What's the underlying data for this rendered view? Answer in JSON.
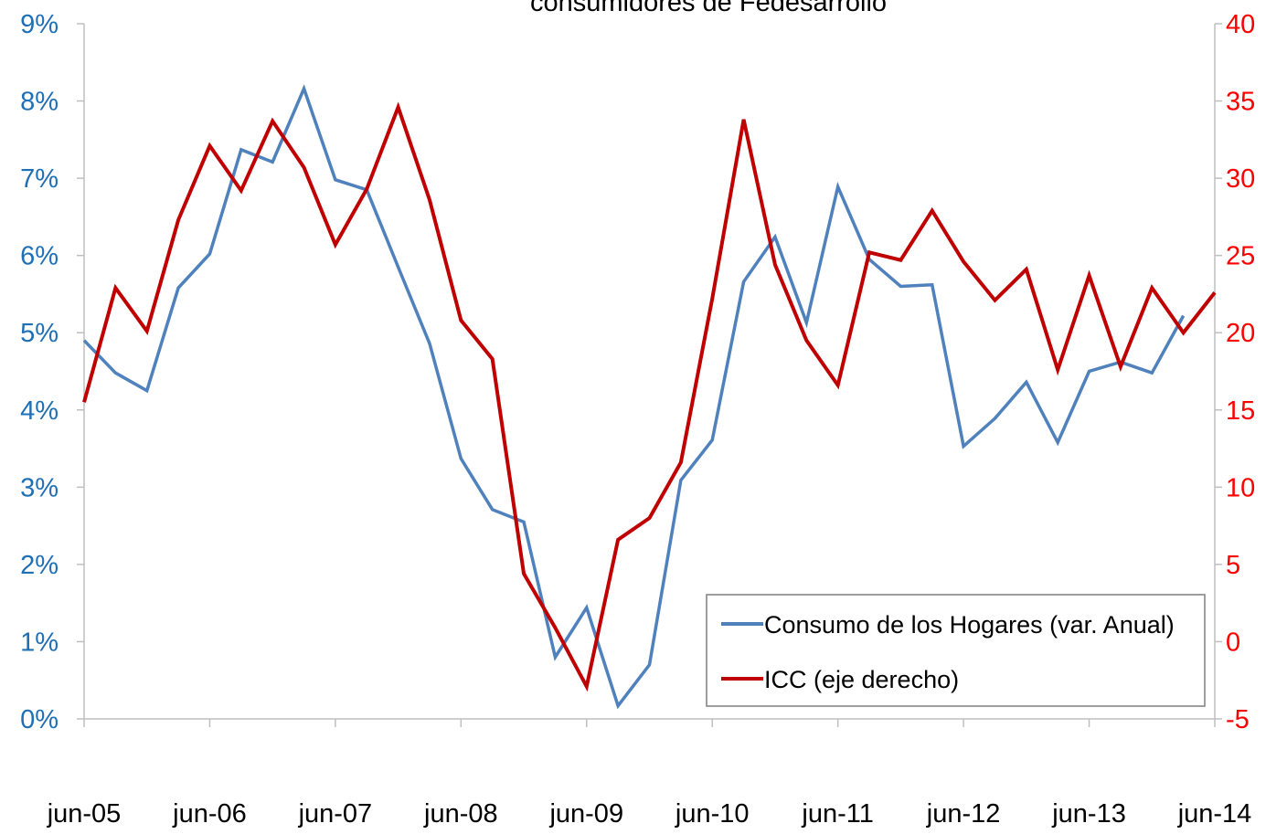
{
  "chart_data": {
    "type": "line",
    "title": "consumidores de Fedesarrollo",
    "categories": [
      "jun-05",
      null,
      null,
      null,
      "jun-06",
      null,
      null,
      null,
      "jun-07",
      null,
      null,
      null,
      "jun-08",
      null,
      null,
      null,
      "jun-09",
      null,
      null,
      null,
      "jun-10",
      null,
      null,
      null,
      "jun-11",
      null,
      null,
      null,
      "jun-12",
      null,
      null,
      null,
      "jun-13",
      null,
      null,
      null,
      "jun-14"
    ],
    "series": [
      {
        "name": "Consumo de los Hogares (var. Anual)",
        "color": "#4f81bd",
        "axis": "y",
        "values": [
          4.9,
          4.48,
          4.25,
          5.58,
          6.02,
          7.37,
          7.21,
          8.16,
          6.98,
          6.85,
          5.85,
          4.86,
          3.37,
          2.71,
          2.55,
          0.8,
          1.44,
          0.17,
          0.7,
          3.09,
          3.61,
          5.66,
          6.24,
          5.13,
          6.89,
          5.95,
          5.6,
          5.62,
          3.53,
          3.89,
          4.36,
          3.58,
          4.5,
          4.62,
          4.48,
          5.22,
          null
        ]
      },
      {
        "name": "ICC (eje derecho)",
        "color": "#c00000",
        "axis": "y2",
        "values": [
          15.5,
          22.9,
          20.1,
          27.3,
          32.1,
          29.2,
          33.7,
          30.7,
          25.7,
          29.3,
          34.6,
          28.6,
          20.8,
          18.3,
          4.4,
          0.9,
          -2.9,
          6.6,
          8.0,
          11.6,
          22.2,
          33.8,
          24.4,
          19.5,
          16.6,
          25.2,
          24.7,
          27.9,
          24.6,
          22.1,
          24.1,
          17.6,
          23.7,
          17.8,
          22.9,
          20.0,
          22.6
        ]
      }
    ],
    "ylim": [
      0,
      9
    ],
    "yticks": [
      {
        "value": 0,
        "label": "0%"
      },
      {
        "value": 1,
        "label": "1%"
      },
      {
        "value": 2,
        "label": "2%"
      },
      {
        "value": 3,
        "label": "3%"
      },
      {
        "value": 4,
        "label": "4%"
      },
      {
        "value": 5,
        "label": "5%"
      },
      {
        "value": 6,
        "label": "6%"
      },
      {
        "value": 7,
        "label": "7%"
      },
      {
        "value": 8,
        "label": "8%"
      },
      {
        "value": 9,
        "label": "9%"
      }
    ],
    "y2lim": [
      -5,
      40
    ],
    "y2ticks": [
      -5,
      0,
      5,
      10,
      15,
      20,
      25,
      30,
      35,
      40
    ],
    "y_color": "#1f6fb5",
    "y2_color": "#ff0000",
    "legend": "lower right",
    "grid": false
  }
}
